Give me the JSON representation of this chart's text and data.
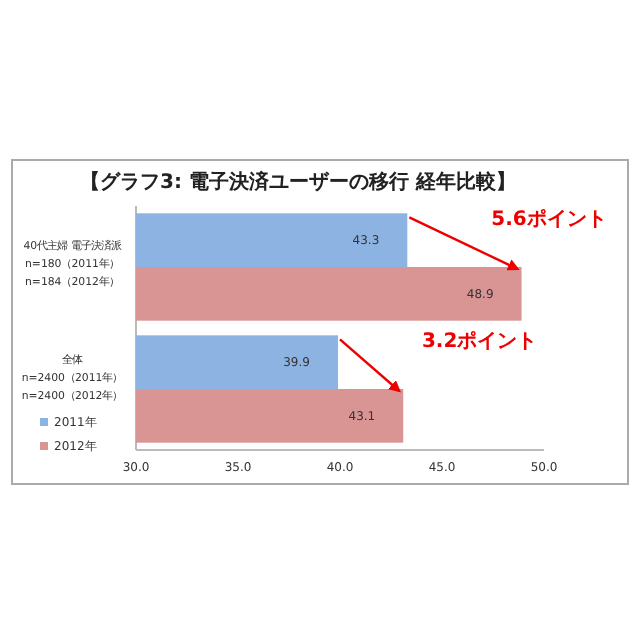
{
  "chart_data": {
    "type": "bar",
    "orientation": "horizontal",
    "title": "【グラフ3: 電子決済ユーザーの移行  経年比較】",
    "categories": [
      "40代主婦 電子決済派\nn=180（2011年）\nn=184（2012年）",
      "全体\nn=2400（2011年）\nn=2400（2012年）"
    ],
    "series": [
      {
        "name": "2011年",
        "color": "#8db3e2",
        "values": [
          43.3,
          39.9
        ]
      },
      {
        "name": "2012年",
        "color": "#d99594",
        "values": [
          48.9,
          43.1
        ]
      }
    ],
    "data_labels": true,
    "xlim": [
      30,
      50
    ],
    "xticks": [
      {
        "value": 30,
        "label": "30.0"
      },
      {
        "value": 35,
        "label": "35.0"
      },
      {
        "value": 40,
        "label": "40.0"
      },
      {
        "value": 45,
        "label": "45.0"
      },
      {
        "value": 50,
        "label": "50.0"
      }
    ],
    "legend": "bottom left",
    "grid": false,
    "annotations": [
      "5.6ポイント",
      "3.2ポイント"
    ]
  }
}
